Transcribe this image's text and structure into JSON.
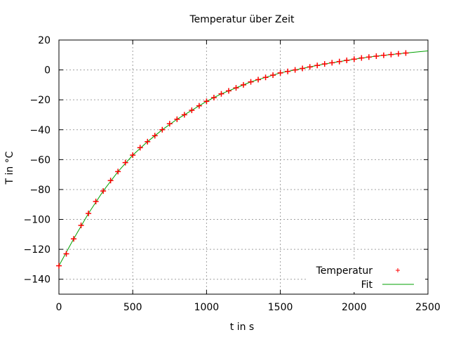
{
  "chart_data": {
    "type": "scatter",
    "title": "Temperatur über Zeit",
    "xlabel": "t in s",
    "ylabel": "T in °C",
    "xlim": [
      0,
      2500
    ],
    "ylim": [
      -150,
      20
    ],
    "xticks": [
      0,
      500,
      1000,
      1500,
      2000,
      2500
    ],
    "yticks": [
      -140,
      -120,
      -100,
      -80,
      -60,
      -40,
      -20,
      0,
      20
    ],
    "grid": true,
    "legend_position": "bottom-right",
    "series": [
      {
        "name": "Temperatur",
        "kind": "points",
        "marker": "plus",
        "color": "#ff0000",
        "x": [
          0,
          50,
          100,
          150,
          200,
          250,
          300,
          350,
          400,
          450,
          500,
          550,
          600,
          650,
          700,
          750,
          800,
          850,
          900,
          950,
          1000,
          1050,
          1100,
          1150,
          1200,
          1250,
          1300,
          1350,
          1400,
          1450,
          1500,
          1550,
          1600,
          1650,
          1700,
          1750,
          1800,
          1850,
          1900,
          1950,
          2000,
          2050,
          2100,
          2150,
          2200,
          2250,
          2300,
          2350
        ],
        "y": [
          -131,
          -123,
          -113,
          -104,
          -96,
          -88,
          -81,
          -74,
          -68,
          -62,
          -57,
          -52,
          -48,
          -44,
          -40,
          -36,
          -33,
          -30,
          -27,
          -24,
          -21,
          -18.5,
          -16,
          -14,
          -12,
          -10,
          -8,
          -6.5,
          -5,
          -3.5,
          -2,
          -1,
          0,
          1,
          2,
          3,
          4,
          4.8,
          5.6,
          6.4,
          7.2,
          8,
          8.6,
          9.2,
          9.8,
          10.3,
          10.8,
          11.3
        ]
      },
      {
        "name": "Fit",
        "kind": "line",
        "color": "#00a000",
        "x": [
          0,
          100,
          200,
          300,
          400,
          500,
          600,
          700,
          800,
          900,
          1000,
          1100,
          1200,
          1300,
          1400,
          1500,
          1600,
          1700,
          1800,
          1900,
          2000,
          2100,
          2200,
          2300,
          2400,
          2500
        ],
        "y": [
          -131,
          -113,
          -96,
          -81,
          -68,
          -57,
          -48,
          -40,
          -33,
          -27,
          -21,
          -16,
          -12,
          -8,
          -5,
          -2,
          0,
          2,
          4,
          5.6,
          7.2,
          8.6,
          9.8,
          10.8,
          11.8,
          12.7
        ]
      }
    ]
  }
}
